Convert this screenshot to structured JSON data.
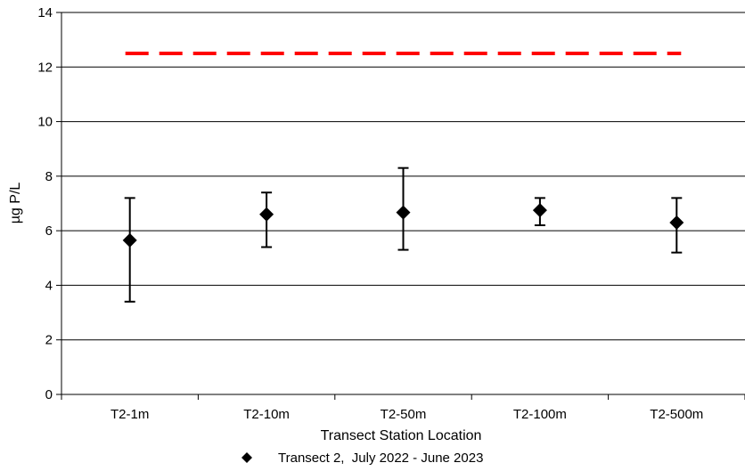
{
  "chart_data": {
    "type": "scatter",
    "categories": [
      "T2-1m",
      "T2-10m",
      "T2-50m",
      "T2-100m",
      "T2-500m"
    ],
    "series": [
      {
        "name": "Transect 2,  July 2022 - June 2023",
        "values": [
          5.65,
          6.6,
          6.67,
          6.75,
          6.3
        ],
        "error_low": [
          3.4,
          5.4,
          5.3,
          6.2,
          5.2
        ],
        "error_high": [
          7.2,
          7.4,
          8.3,
          7.2,
          7.2
        ],
        "color": "#000000",
        "marker": "diamond"
      }
    ],
    "reference_line": {
      "value": 12.5,
      "color": "#ff0000",
      "style": "dashed"
    },
    "xlabel": "Transect Station Location",
    "ylabel": "µg P/L",
    "ylim": [
      0,
      14
    ],
    "yticks": [
      0,
      2,
      4,
      6,
      8,
      10,
      12,
      14
    ],
    "grid": "horizontal",
    "legend_position": "bottom"
  }
}
